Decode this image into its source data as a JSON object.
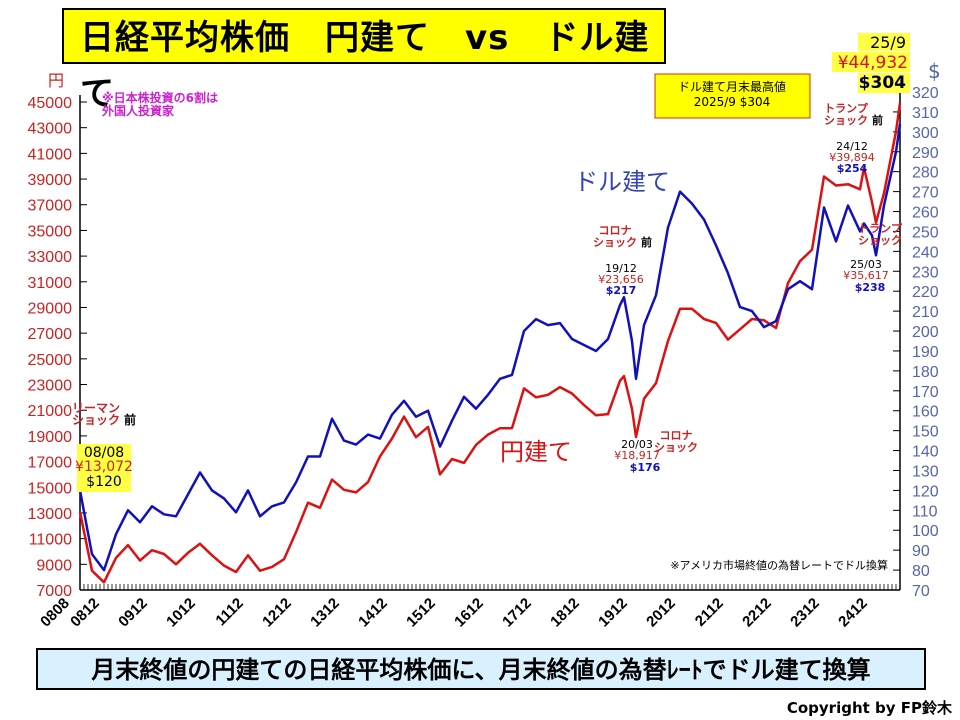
{
  "title": "日経平均株価　円建て　vs　ドル建て",
  "banner": "月末終値の円建ての日経平均株価に、月末終値の為替ﾚｰﾄでドル建て換算",
  "copyright": "Copyright by FP鈴木",
  "chart_data": {
    "type": "line",
    "title": "日経平均株価　円建て　vs　ドル建て",
    "y_left_label": "円",
    "y_right_label": "$",
    "ylim_left": [
      7000,
      45000
    ],
    "ylim_right": [
      70,
      320
    ],
    "y_left_ticks": [
      7000,
      9000,
      11000,
      13000,
      15000,
      17000,
      19000,
      21000,
      23000,
      25000,
      27000,
      29000,
      31000,
      33000,
      35000,
      37000,
      39000,
      41000,
      43000,
      45000
    ],
    "y_right_ticks": [
      70,
      80,
      90,
      100,
      110,
      120,
      130,
      140,
      150,
      160,
      170,
      180,
      190,
      200,
      210,
      220,
      230,
      240,
      250,
      260,
      270,
      280,
      290,
      300,
      310,
      320
    ],
    "x_ticks": [
      "0808",
      "0812",
      "0912",
      "1012",
      "1112",
      "1212",
      "1312",
      "1412",
      "1512",
      "1612",
      "1712",
      "1812",
      "1912",
      "2012",
      "2112",
      "2212",
      "2312",
      "2412"
    ],
    "x": [
      "0808",
      "0811",
      "0902",
      "0905",
      "0908",
      "0911",
      "1002",
      "1005",
      "1008",
      "1011",
      "1102",
      "1105",
      "1108",
      "1111",
      "1202",
      "1205",
      "1208",
      "1211",
      "1302",
      "1305",
      "1308",
      "1311",
      "1402",
      "1405",
      "1408",
      "1411",
      "1502",
      "1505",
      "1508",
      "1511",
      "1602",
      "1605",
      "1608",
      "1611",
      "1702",
      "1705",
      "1708",
      "1711",
      "1802",
      "1805",
      "1808",
      "1811",
      "1902",
      "1905",
      "1908",
      "1911",
      "1912",
      "2002",
      "2003",
      "2005",
      "2008",
      "2011",
      "2102",
      "2105",
      "2108",
      "2111",
      "2202",
      "2205",
      "2208",
      "2211",
      "2302",
      "2305",
      "2308",
      "2311",
      "2402",
      "2405",
      "2408",
      "2411",
      "2412",
      "2502",
      "2503",
      "2505",
      "2508",
      "2509"
    ],
    "series": [
      {
        "name": "円建て",
        "axis": "left",
        "color": "#dd1111",
        "values": [
          13072,
          8500,
          7600,
          9500,
          10500,
          9300,
          10100,
          9800,
          9000,
          9900,
          10600,
          9700,
          8900,
          8400,
          9700,
          8500,
          8800,
          9400,
          11500,
          13800,
          13400,
          15600,
          14800,
          14600,
          15400,
          17400,
          18800,
          20500,
          18900,
          19700,
          16000,
          17200,
          16900,
          18300,
          19100,
          19600,
          19600,
          22700,
          22000,
          22200,
          22800,
          22300,
          21400,
          20600,
          20700,
          23300,
          23656,
          21100,
          18917,
          21900,
          23100,
          26400,
          28900,
          28900,
          28100,
          27800,
          26500,
          27300,
          28100,
          28000,
          27400,
          30900,
          32600,
          33500,
          39200,
          38500,
          38600,
          38200,
          39894,
          37200,
          35617,
          37900,
          42700,
          44932
        ]
      },
      {
        "name": "ドル建て",
        "axis": "right",
        "color": "#1111bb",
        "values": [
          120,
          88,
          80,
          98,
          110,
          104,
          112,
          108,
          107,
          118,
          129,
          120,
          116,
          109,
          120,
          107,
          112,
          114,
          124,
          137,
          137,
          156,
          145,
          143,
          148,
          146,
          158,
          165,
          157,
          160,
          142,
          155,
          167,
          161,
          168,
          176,
          178,
          200,
          206,
          203,
          204,
          196,
          193,
          190,
          196,
          213,
          217,
          195,
          176,
          203,
          218,
          252,
          270,
          264,
          256,
          243,
          229,
          212,
          210,
          202,
          205,
          221,
          225,
          221,
          262,
          245,
          263,
          250,
          254,
          248,
          238,
          263,
          290,
          304
        ]
      }
    ],
    "annotations": {
      "foreign": "※日本株投資の6割は\n外国人投資家",
      "max_box": "ドル建て月末最高値\n2025/9 $304",
      "dollar_label": "ドル建て",
      "yen_label": "円建て",
      "lehman": {
        "event": "リーマン\nショック",
        "suffix": "前",
        "date": "08/08",
        "yen": "¥13,072",
        "usd": "$120"
      },
      "corona_pre": {
        "event": "コロナ\nショック",
        "suffix": "前",
        "date": "19/12",
        "yen": "¥23,656",
        "usd": "$217"
      },
      "corona": {
        "event": "コロナ\nショック",
        "date": "20/03",
        "yen": "¥18,917",
        "usd": "$176"
      },
      "trump_pre": {
        "event": "トランプ\nショック",
        "suffix": "前",
        "date": "24/12",
        "yen": "¥39,894",
        "usd": "$254"
      },
      "trump": {
        "event": "トランプ\nショック",
        "date": "25/03",
        "yen": "¥35,617",
        "usd": "$238"
      },
      "latest": {
        "date": "25/9",
        "yen": "¥44,932",
        "usd": "$304"
      },
      "fx_note": "※アメリカ市場終値の為替レートでドル換算"
    }
  }
}
